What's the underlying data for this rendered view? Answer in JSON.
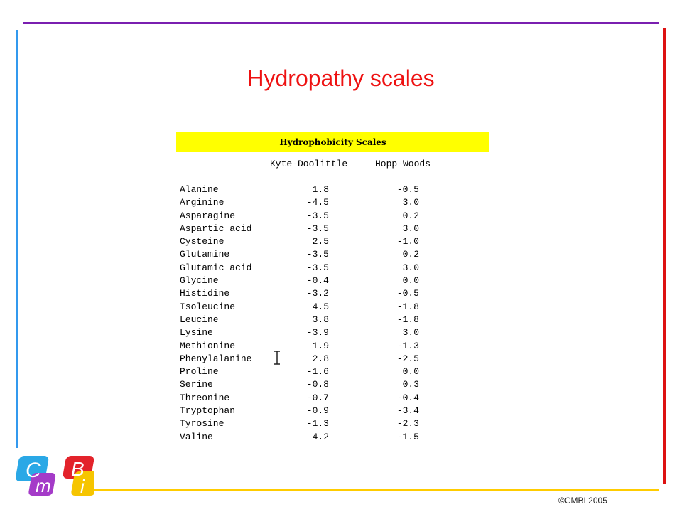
{
  "slide": {
    "title": "Hydropathy scales",
    "copyright": "©CMBI 2005"
  },
  "logo": {
    "letters": [
      "C",
      "m",
      "B",
      "i"
    ],
    "colors": {
      "C": "#2aa8e6",
      "m": "#a43bc8",
      "B": "#e3232b",
      "i": "#f6c500"
    }
  },
  "decor_colors": {
    "top": "#7a1fb0",
    "left": "#3399ee",
    "right": "#dd1111",
    "bottom": "#ffcc00",
    "title": "#ee1111",
    "header_bg": "#ffff00"
  },
  "table": {
    "header": "Hydrophobicity Scales",
    "columns": [
      "Kyte-Doolittle",
      "Hopp-Woods"
    ],
    "rows": [
      {
        "name": "Alanine",
        "kd": "1.8",
        "hw": "-0.5"
      },
      {
        "name": "Arginine",
        "kd": "-4.5",
        "hw": "3.0"
      },
      {
        "name": "Asparagine",
        "kd": "-3.5",
        "hw": "0.2"
      },
      {
        "name": "Aspartic acid",
        "kd": "-3.5",
        "hw": "3.0"
      },
      {
        "name": "Cysteine",
        "kd": "2.5",
        "hw": "-1.0"
      },
      {
        "name": "Glutamine",
        "kd": "-3.5",
        "hw": "0.2"
      },
      {
        "name": "Glutamic acid",
        "kd": "-3.5",
        "hw": "3.0"
      },
      {
        "name": "Glycine",
        "kd": "-0.4",
        "hw": "0.0"
      },
      {
        "name": "Histidine",
        "kd": "-3.2",
        "hw": "-0.5"
      },
      {
        "name": "Isoleucine",
        "kd": "4.5",
        "hw": "-1.8"
      },
      {
        "name": "Leucine",
        "kd": "3.8",
        "hw": "-1.8"
      },
      {
        "name": "Lysine",
        "kd": "-3.9",
        "hw": "3.0"
      },
      {
        "name": "Methionine",
        "kd": "1.9",
        "hw": "-1.3"
      },
      {
        "name": "Phenylalanine",
        "kd": "2.8",
        "hw": "-2.5"
      },
      {
        "name": "Proline",
        "kd": "-1.6",
        "hw": "0.0"
      },
      {
        "name": "Serine",
        "kd": "-0.8",
        "hw": "0.3"
      },
      {
        "name": "Threonine",
        "kd": "-0.7",
        "hw": "-0.4"
      },
      {
        "name": "Tryptophan",
        "kd": "-0.9",
        "hw": "-3.4"
      },
      {
        "name": "Tyrosine",
        "kd": "-1.3",
        "hw": "-2.3"
      },
      {
        "name": "Valine",
        "kd": "4.2",
        "hw": "-1.5"
      }
    ]
  }
}
